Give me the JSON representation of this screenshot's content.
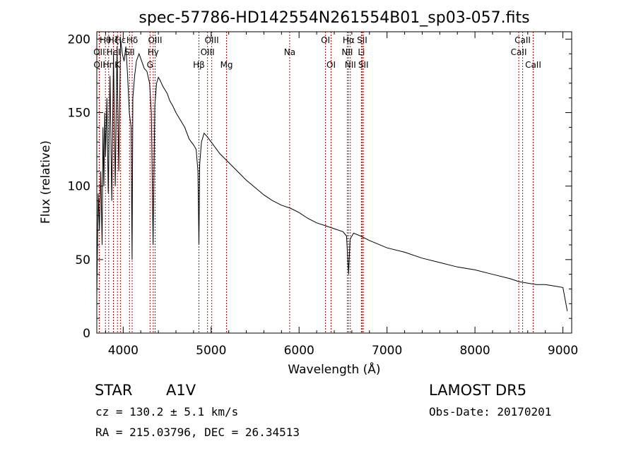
{
  "chart_data": {
    "type": "line",
    "title": "spec-57786-HD142554N261554B01_sp03-057.fits",
    "xlabel": "Wavelength (Å)",
    "ylabel": "Flux (relative)",
    "xlim": [
      3700,
      9100
    ],
    "ylim": [
      0,
      205
    ],
    "xticks": [
      4000,
      5000,
      6000,
      7000,
      8000,
      9000
    ],
    "yticks": [
      0,
      50,
      100,
      150,
      200
    ],
    "grid": false,
    "series": [
      {
        "x": [
          3700,
          3715,
          3730,
          3745,
          3760,
          3770,
          3780,
          3790,
          3800,
          3815,
          3830,
          3850,
          3870,
          3890,
          3910,
          3930,
          3950,
          3970,
          3990,
          4010,
          4030,
          4050,
          4070,
          4090,
          4101,
          4110,
          4130,
          4150,
          4180,
          4210,
          4240,
          4270,
          4300,
          4320,
          4340,
          4360,
          4380,
          4400,
          4420,
          4450,
          4480,
          4500,
          4530,
          4560,
          4600,
          4650,
          4700,
          4750,
          4800,
          4830,
          4850,
          4861,
          4870,
          4890,
          4920,
          4950,
          5000,
          5100,
          5200,
          5300,
          5400,
          5500,
          5600,
          5700,
          5800,
          5900,
          6000,
          6100,
          6200,
          6300,
          6400,
          6500,
          6540,
          6563,
          6580,
          6620,
          6700,
          6800,
          7000,
          7200,
          7400,
          7600,
          7800,
          8000,
          8200,
          8400,
          8500,
          8600,
          8700,
          8800,
          8900,
          9000,
          9050
        ],
        "y": [
          25,
          95,
          70,
          110,
          60,
          140,
          100,
          150,
          120,
          160,
          95,
          175,
          90,
          190,
          100,
          195,
          110,
          200,
          190,
          185,
          195,
          175,
          150,
          140,
          50,
          160,
          175,
          185,
          190,
          185,
          180,
          178,
          170,
          150,
          60,
          155,
          170,
          174,
          172,
          168,
          165,
          163,
          158,
          155,
          150,
          145,
          140,
          132,
          128,
          125,
          110,
          60,
          115,
          130,
          136,
          134,
          130,
          122,
          116,
          110,
          104,
          99,
          94,
          90,
          87,
          85,
          82,
          78,
          75,
          73,
          71,
          69,
          66,
          40,
          64,
          68,
          66,
          63,
          58,
          55,
          51,
          48,
          45,
          43,
          40,
          37,
          35,
          34,
          33,
          33,
          32,
          31,
          15
        ]
      }
    ],
    "lines": [
      {
        "label": "Hθ",
        "x": 3798,
        "row": 0
      },
      {
        "label": "OII",
        "x": 3727,
        "row": 1
      },
      {
        "label": "OII",
        "x": 3729,
        "row": 2
      },
      {
        "label": "Hη",
        "x": 3835,
        "row": 2
      },
      {
        "label": "Hζ",
        "x": 3889,
        "row": 0
      },
      {
        "label": "HeI",
        "x": 3889,
        "row": 1
      },
      {
        "label": "K",
        "x": 3934,
        "row": 2
      },
      {
        "label": "Hε",
        "x": 3970,
        "row": 0
      },
      {
        "label": "SII",
        "x": 4072,
        "row": 1
      },
      {
        "label": "Hδ",
        "x": 4102,
        "row": 0
      },
      {
        "label": "G",
        "x": 4305,
        "row": 2
      },
      {
        "label": "Hγ",
        "x": 4341,
        "row": 1
      },
      {
        "label": "OIII",
        "x": 4363,
        "row": 0
      },
      {
        "label": "Hβ",
        "x": 4861,
        "row": 2
      },
      {
        "label": "OIII",
        "x": 4959,
        "row": 1
      },
      {
        "label": "OIII",
        "x": 5007,
        "row": 0
      },
      {
        "label": "Mg",
        "x": 5175,
        "row": 2
      },
      {
        "label": "Na",
        "x": 5893,
        "row": 1
      },
      {
        "label": "OI",
        "x": 6300,
        "row": 0
      },
      {
        "label": "OI",
        "x": 6364,
        "row": 2
      },
      {
        "label": "NII",
        "x": 6548,
        "row": 1
      },
      {
        "label": "Hα",
        "x": 6563,
        "row": 0
      },
      {
        "label": "NII",
        "x": 6583,
        "row": 2
      },
      {
        "label": "Li",
        "x": 6708,
        "row": 1
      },
      {
        "label": "SII",
        "x": 6717,
        "row": 0
      },
      {
        "label": "SII",
        "x": 6731,
        "row": 2
      },
      {
        "label": "CaII",
        "x": 8498,
        "row": 1
      },
      {
        "label": "CaII",
        "x": 8542,
        "row": 0
      },
      {
        "label": "CaII",
        "x": 8662,
        "row": 2
      }
    ]
  },
  "info": {
    "class_label": "STAR",
    "subclass": "A1V",
    "survey": "LAMOST  DR5",
    "cz": "cz = 130.2 ± 5.1 km/s",
    "obs_date": "Obs-Date: 20170201",
    "coords": "RA = 215.03796, DEC =  26.34513"
  },
  "colors": {
    "line_marker": "#cc0000",
    "spectrum": "#000000"
  }
}
